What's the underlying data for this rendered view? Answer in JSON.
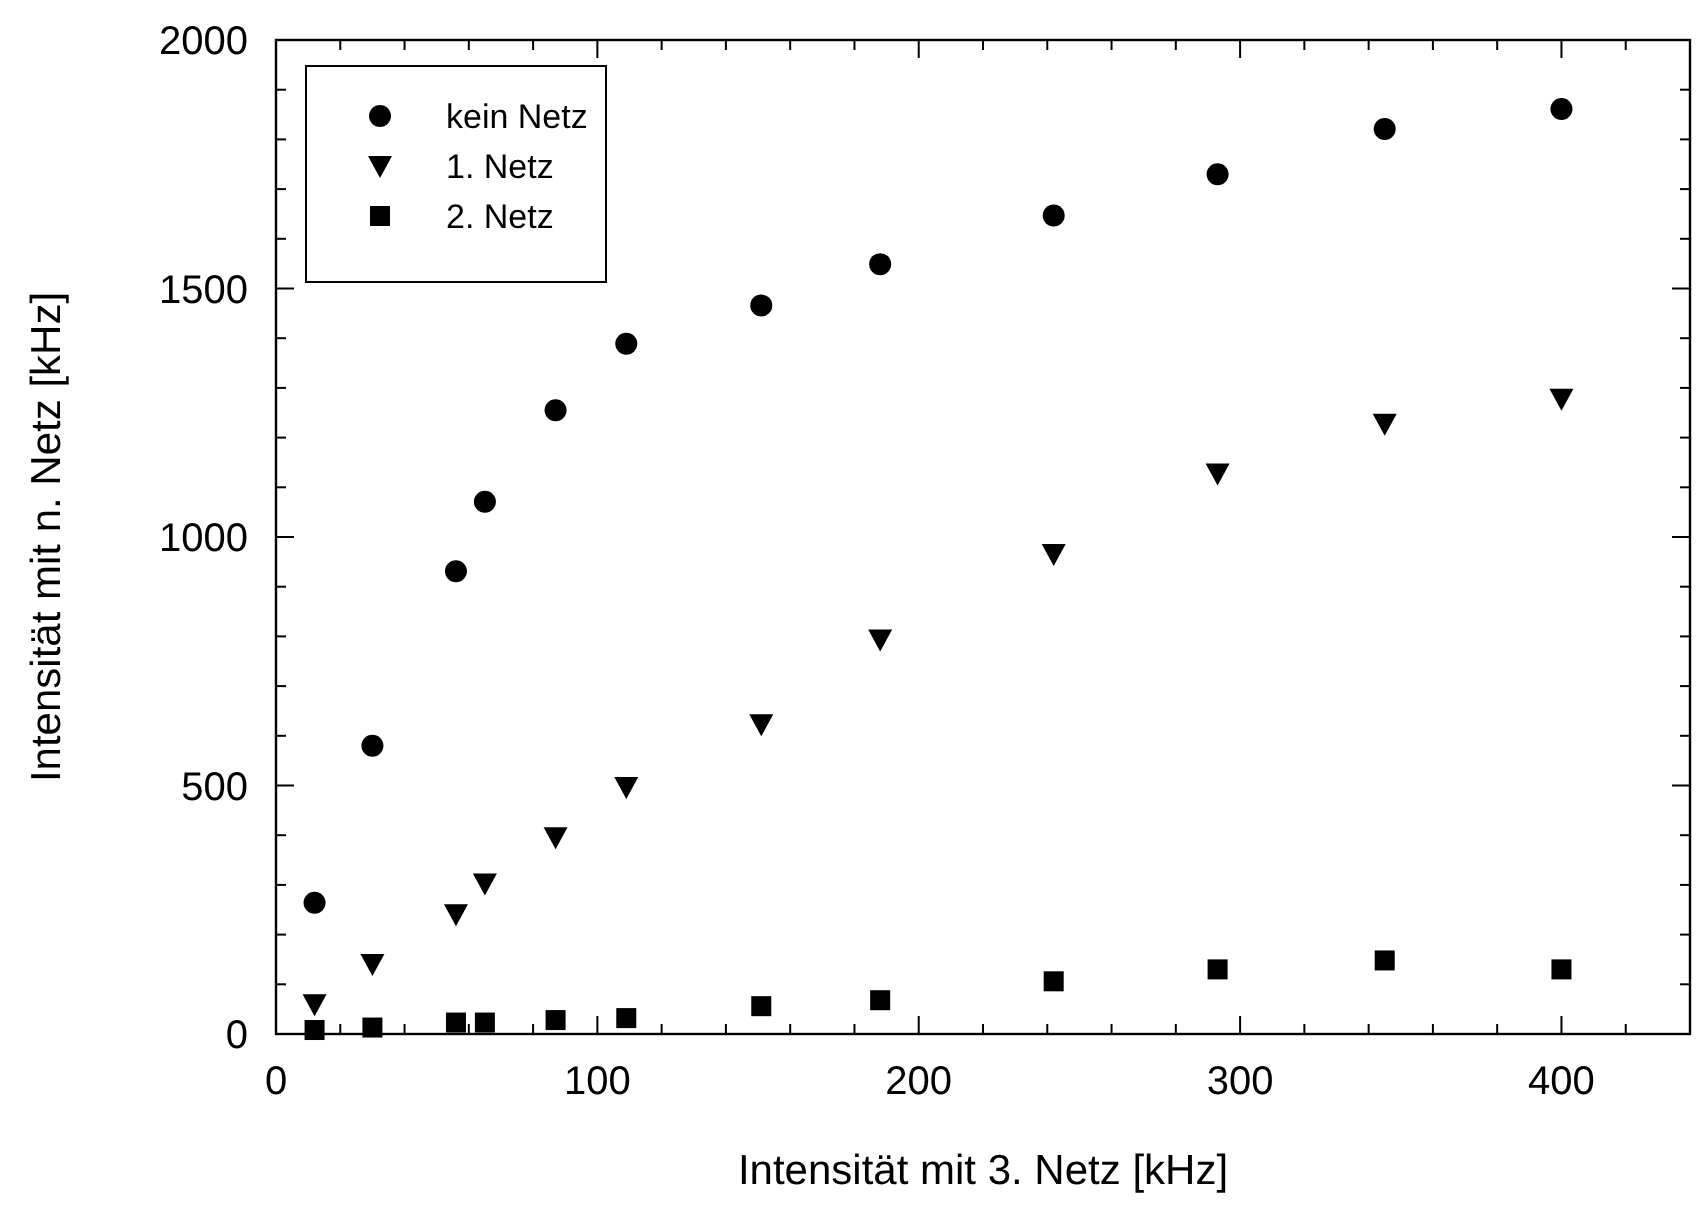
{
  "chart_data": {
    "type": "scatter",
    "xlabel": "Intensität mit 3. Netz [kHz]",
    "ylabel": "Intensität mit n. Netz [kHz]",
    "x": [
      12,
      30,
      56,
      65,
      87,
      109,
      151,
      188,
      242,
      293,
      345,
      400
    ],
    "series": [
      {
        "name": "kein Netz",
        "color": "#000000",
        "marker": "circle",
        "values": [
          264,
          580,
          931,
          1071,
          1255,
          1389,
          1466,
          1549,
          1647,
          1730,
          1821,
          1861
        ]
      },
      {
        "name": "1. Netz",
        "color": "#000000",
        "marker": "triangle",
        "values": [
          60,
          141,
          241,
          303,
          396,
          497,
          623,
          794,
          966,
          1128,
          1228,
          1278
        ]
      },
      {
        "name": "2. Netz",
        "color": "#000000",
        "marker": "square",
        "values": [
          8,
          13,
          23,
          23,
          28,
          32,
          56,
          68,
          106,
          130,
          148,
          130
        ]
      }
    ],
    "xlim": [
      0,
      440
    ],
    "ylim": [
      0,
      2000
    ],
    "xticks": [
      0,
      {
        "value": 20,
        "label": null
      },
      {
        "value": 40,
        "label": null
      },
      {
        "value": 60,
        "label": null
      },
      {
        "value": 80,
        "label": null
      },
      100,
      {
        "value": 120,
        "label": null
      },
      {
        "value": 140,
        "label": null
      },
      {
        "value": 160,
        "label": null
      },
      {
        "value": 180,
        "label": null
      },
      200,
      {
        "value": 220,
        "label": null
      },
      {
        "value": 240,
        "label": null
      },
      {
        "value": 260,
        "label": null
      },
      {
        "value": 280,
        "label": null
      },
      300,
      {
        "value": 320,
        "label": null
      },
      {
        "value": 340,
        "label": null
      },
      {
        "value": 360,
        "label": null
      },
      {
        "value": 380,
        "label": null
      },
      400,
      {
        "value": 420,
        "label": null
      },
      {
        "value": 440,
        "label": null
      }
    ],
    "yticks": [
      0,
      {
        "value": 100,
        "label": null
      },
      {
        "value": 200,
        "label": null
      },
      {
        "value": 300,
        "label": null
      },
      {
        "value": 400,
        "label": null
      },
      500,
      {
        "value": 600,
        "label": null
      },
      {
        "value": 700,
        "label": null
      },
      {
        "value": 800,
        "label": null
      },
      {
        "value": 900,
        "label": null
      },
      1000,
      {
        "value": 1100,
        "label": null
      },
      {
        "value": 1200,
        "label": null
      },
      {
        "value": 1300,
        "label": null
      },
      {
        "value": 1400,
        "label": null
      },
      1500,
      {
        "value": 1600,
        "label": null
      },
      {
        "value": 1700,
        "label": null
      },
      {
        "value": 1800,
        "label": null
      },
      {
        "value": 1900,
        "label": null
      },
      2000
    ],
    "grid": false,
    "legend": "top left"
  }
}
